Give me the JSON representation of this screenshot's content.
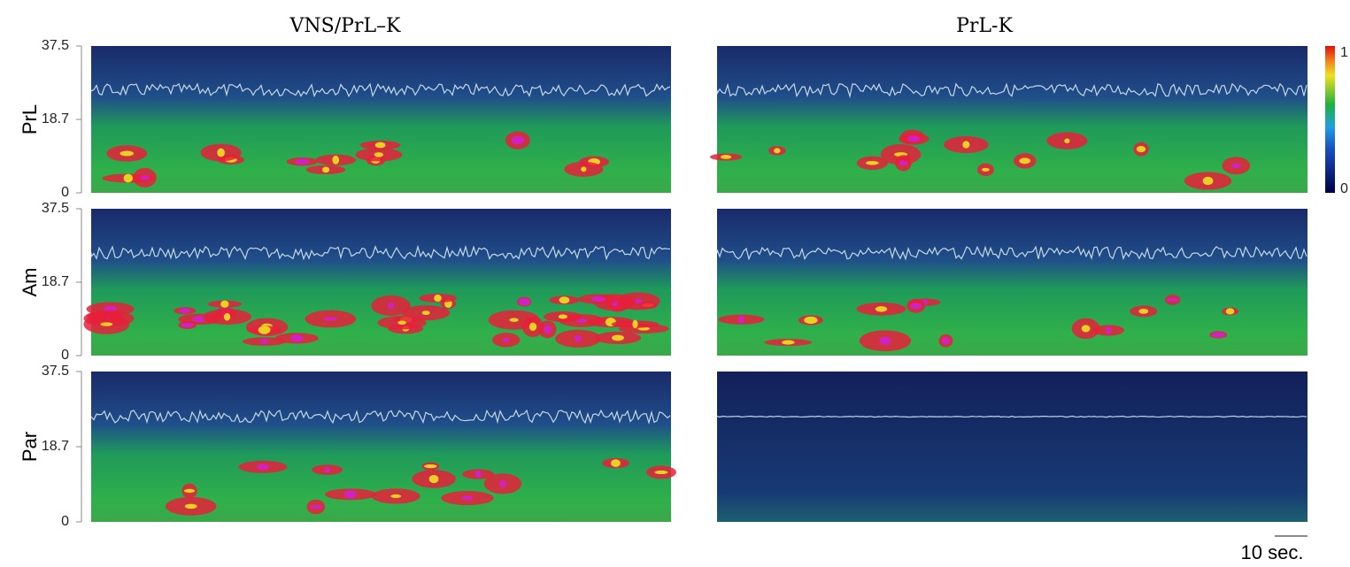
{
  "titles": [
    "VNS/PrL–K",
    "PrL-K"
  ],
  "rows": [
    "PrL",
    "Am",
    "Par"
  ],
  "yticks": [
    "37.5",
    "18.7",
    "0"
  ],
  "colorbar": {
    "max": "1",
    "min": "0"
  },
  "scale_bar": "10 sec."
}
